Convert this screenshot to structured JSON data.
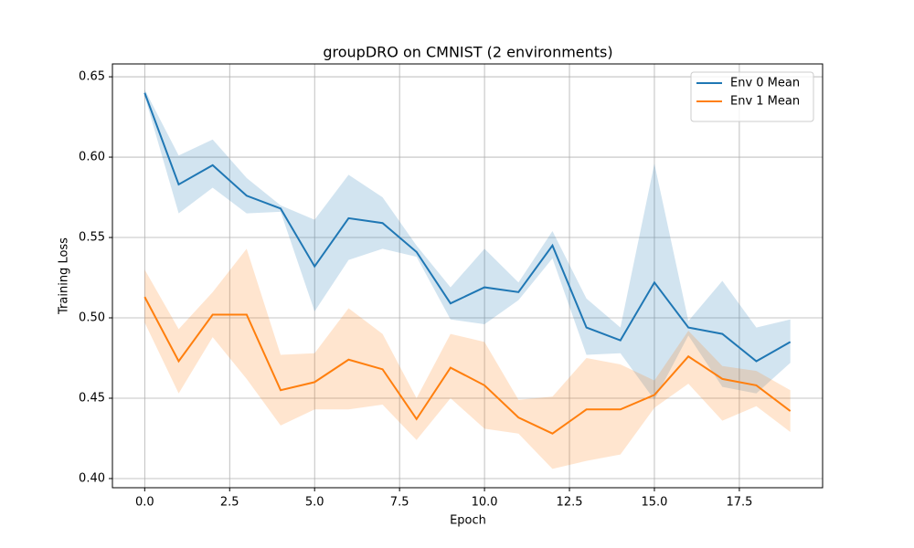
{
  "chart_data": {
    "type": "line",
    "title": "groupDRO on CMNIST (2 environments)",
    "x_label": "Epoch",
    "y_label": "Training Loss",
    "x": [
      0,
      1,
      2,
      3,
      4,
      5,
      6,
      7,
      8,
      9,
      10,
      11,
      12,
      13,
      14,
      15,
      16,
      17,
      18,
      19
    ],
    "series": [
      {
        "name": "Env 0 Mean",
        "color": "#1f77b4",
        "values": [
          0.64,
          0.583,
          0.595,
          0.576,
          0.568,
          0.532,
          0.562,
          0.559,
          0.541,
          0.509,
          0.519,
          0.516,
          0.545,
          0.494,
          0.486,
          0.522,
          0.494,
          0.49,
          0.473,
          0.485
        ],
        "upper": [
          0.642,
          0.601,
          0.611,
          0.587,
          0.57,
          0.561,
          0.589,
          0.575,
          0.545,
          0.519,
          0.543,
          0.522,
          0.554,
          0.512,
          0.494,
          0.596,
          0.498,
          0.523,
          0.494,
          0.499
        ],
        "lower": [
          0.638,
          0.565,
          0.581,
          0.565,
          0.566,
          0.504,
          0.536,
          0.543,
          0.538,
          0.499,
          0.496,
          0.511,
          0.537,
          0.477,
          0.478,
          0.449,
          0.489,
          0.457,
          0.453,
          0.472
        ]
      },
      {
        "name": "Env 1 Mean",
        "color": "#ff7f0e",
        "values": [
          0.513,
          0.473,
          0.502,
          0.502,
          0.455,
          0.46,
          0.474,
          0.468,
          0.437,
          0.469,
          0.458,
          0.438,
          0.428,
          0.443,
          0.443,
          0.452,
          0.476,
          0.462,
          0.458,
          0.442
        ],
        "upper": [
          0.53,
          0.493,
          0.516,
          0.543,
          0.477,
          0.478,
          0.506,
          0.49,
          0.45,
          0.49,
          0.485,
          0.449,
          0.451,
          0.475,
          0.471,
          0.461,
          0.492,
          0.47,
          0.467,
          0.455
        ],
        "lower": [
          0.497,
          0.453,
          0.488,
          0.462,
          0.433,
          0.443,
          0.443,
          0.446,
          0.424,
          0.45,
          0.431,
          0.428,
          0.406,
          0.411,
          0.415,
          0.444,
          0.459,
          0.436,
          0.445,
          0.429
        ]
      }
    ],
    "xlim": [
      -0.95,
      19.95
    ],
    "ylim": [
      0.3943,
      0.658
    ],
    "xticks": [
      {
        "value": 0,
        "label": "0.0"
      },
      {
        "value": 2.5,
        "label": "2.5"
      },
      {
        "value": 5,
        "label": "5.0"
      },
      {
        "value": 7.5,
        "label": "7.5"
      },
      {
        "value": 10,
        "label": "10.0"
      },
      {
        "value": 12.5,
        "label": "12.5"
      },
      {
        "value": 15,
        "label": "15.0"
      },
      {
        "value": 17.5,
        "label": "17.5"
      }
    ],
    "yticks": [
      {
        "value": 0.4,
        "label": "0.40"
      },
      {
        "value": 0.45,
        "label": "0.45"
      },
      {
        "value": 0.5,
        "label": "0.50"
      },
      {
        "value": 0.55,
        "label": "0.55"
      },
      {
        "value": 0.6,
        "label": "0.60"
      },
      {
        "value": 0.65,
        "label": "0.65"
      }
    ],
    "grid": true,
    "legend": "upper right",
    "band_opacity": 0.2
  }
}
